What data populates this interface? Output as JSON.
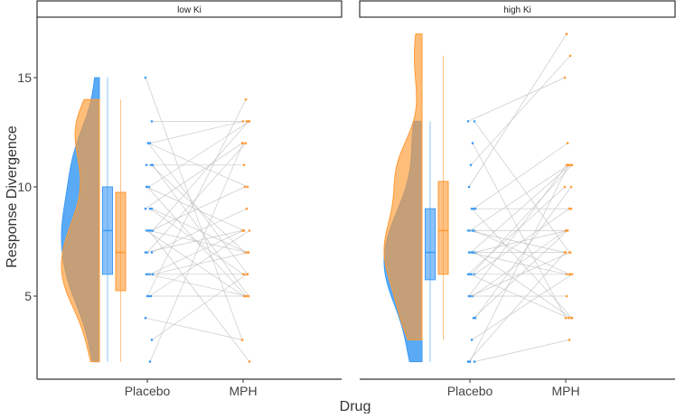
{
  "chart_data": {
    "type": "raincloud",
    "xlabel": "Drug",
    "ylabel": "Response Divergence",
    "ylim": [
      1.5,
      17.5
    ],
    "yticks": [
      5,
      10,
      15
    ],
    "categories": [
      "Placebo",
      "MPH"
    ],
    "colors": {
      "Placebo": "#3d9bf5",
      "MPH": "#ff9a33",
      "line": "#bdbdbd"
    },
    "panels": [
      {
        "label": "low Ki",
        "box": {
          "Placebo": {
            "min": 2,
            "q1": 6,
            "median": 8,
            "q3": 10,
            "max": 15
          },
          "MPH": {
            "min": 2,
            "q1": 5.25,
            "median": 7,
            "q3": 9.75,
            "max": 14
          }
        },
        "pairs": [
          [
            15,
            3
          ],
          [
            13,
            13
          ],
          [
            12,
            13
          ],
          [
            12,
            10
          ],
          [
            11,
            11
          ],
          [
            11,
            5
          ],
          [
            11,
            7
          ],
          [
            10,
            13
          ],
          [
            10,
            5
          ],
          [
            9,
            12
          ],
          [
            9,
            7
          ],
          [
            9,
            6
          ],
          [
            8,
            7
          ],
          [
            8,
            5
          ],
          [
            8,
            13
          ],
          [
            8,
            10
          ],
          [
            8,
            2
          ],
          [
            7,
            12
          ],
          [
            7,
            8
          ],
          [
            7,
            9
          ],
          [
            6,
            8
          ],
          [
            6,
            5
          ],
          [
            6,
            6
          ],
          [
            6,
            7
          ],
          [
            5,
            5
          ],
          [
            5,
            8
          ],
          [
            5,
            14
          ],
          [
            4,
            3
          ],
          [
            3,
            6
          ],
          [
            2,
            12
          ],
          [
            12,
            6
          ],
          [
            10,
            8
          ]
        ]
      },
      {
        "label": "high Ki",
        "box": {
          "Placebo": {
            "min": 2,
            "q1": 5.75,
            "median": 7,
            "q3": 9,
            "max": 13
          },
          "MPH": {
            "min": 3,
            "q1": 6,
            "median": 8,
            "q3": 10.25,
            "max": 16
          }
        },
        "pairs": [
          [
            13,
            15
          ],
          [
            13,
            7
          ],
          [
            12,
            4
          ],
          [
            11,
            16
          ],
          [
            10,
            17
          ],
          [
            9,
            9
          ],
          [
            9,
            12
          ],
          [
            9,
            4
          ],
          [
            8,
            11
          ],
          [
            8,
            7
          ],
          [
            8,
            6
          ],
          [
            8,
            8
          ],
          [
            7,
            11
          ],
          [
            7,
            6
          ],
          [
            7,
            4
          ],
          [
            7,
            8
          ],
          [
            6,
            11
          ],
          [
            6,
            4
          ],
          [
            6,
            10
          ],
          [
            6,
            9
          ],
          [
            5,
            8
          ],
          [
            5,
            7
          ],
          [
            5,
            5
          ],
          [
            4,
            10
          ],
          [
            4,
            8
          ],
          [
            3,
            6
          ],
          [
            2,
            11
          ],
          [
            2,
            7
          ],
          [
            2,
            3
          ],
          [
            7,
            7
          ],
          [
            6,
            6
          ],
          [
            5,
            11
          ]
        ]
      }
    ]
  }
}
